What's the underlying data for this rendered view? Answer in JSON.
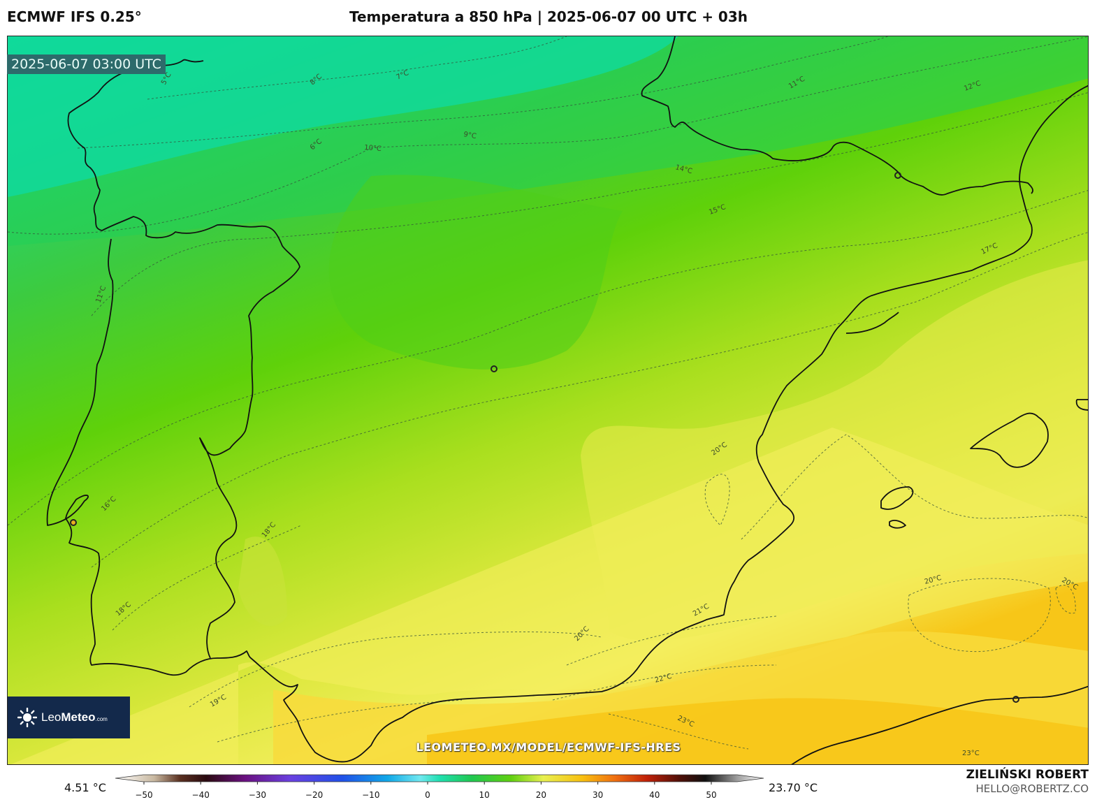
{
  "header": {
    "model": "ECMWF IFS 0.25°",
    "title": "Temperatura a 850 hPa | 2025-06-07 00 UTC + 03h"
  },
  "map": {
    "valid_time": "2025-06-07 03:00 UTC",
    "watermark_url": "LEOMETEO.MX/MODEL/ECMWF-IFS-HRES",
    "contour_labels": [
      "5°C",
      "6°C",
      "7°C",
      "8°C",
      "9°C",
      "10°C",
      "11°C",
      "12°C",
      "14°C",
      "15°C",
      "17°C",
      "11°C",
      "16°C",
      "18°C",
      "18°C",
      "19°C",
      "20°C",
      "20°C",
      "20°C",
      "20°C",
      "21°C",
      "22°C",
      "23°C",
      "23°C"
    ]
  },
  "logo": {
    "brand_light": "Leo",
    "brand_bold": "Meteo",
    "suffix": ".com"
  },
  "legend": {
    "min_label": "4.51 °C",
    "max_label": "23.70 °C",
    "ticks": [
      "−50",
      "−40",
      "−30",
      "−20",
      "−10",
      "0",
      "10",
      "20",
      "30",
      "40",
      "50"
    ]
  },
  "credits": {
    "author": "ZIELIŃSKI ROBERT",
    "email": "HELLO@ROBERTZ.CO"
  },
  "colors": {
    "cold_teal": "#12d9a0",
    "green": "#5fd10a",
    "yellow_green": "#c8e52a",
    "yellow": "#f4ee5e",
    "orange_yellow": "#f7c618",
    "coastline": "#111111",
    "timestamp_bg": "#2d6b6b",
    "logo_bg": "#13294b"
  }
}
